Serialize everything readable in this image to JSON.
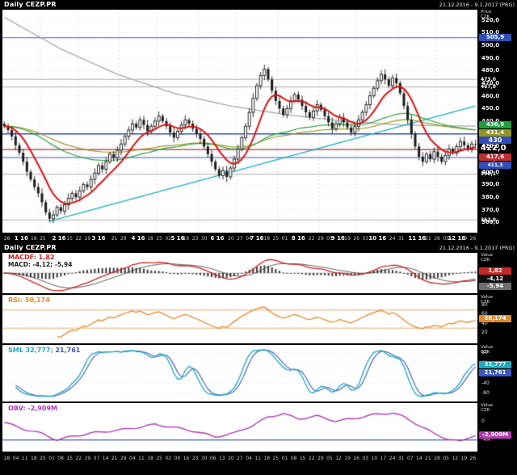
{
  "window": {
    "title": "Daily CEZP.PR",
    "range": "21.12.2016 - 9.1.2017 (PRG)",
    "axis_unit_price": "Price",
    "axis_unit_value": "Value",
    "currency": "CZK"
  },
  "main_chart": {
    "axis_ticks": [
      {
        "t": "520,0",
        "v": 520
      },
      {
        "t": "510,0",
        "v": 510
      },
      {
        "t": "500,0",
        "v": 500
      },
      {
        "t": "490,0",
        "v": 490
      },
      {
        "t": "480,0",
        "v": 480
      },
      {
        "t": "470,0",
        "v": 470
      },
      {
        "t": "460,0",
        "v": 460
      },
      {
        "t": "450,0",
        "v": 450
      },
      {
        "t": "440,0",
        "v": 440
      },
      {
        "t": "430,0",
        "v": 430
      },
      {
        "t": "420,0",
        "v": 420
      },
      {
        "t": "410,0",
        "v": 410
      },
      {
        "t": "400,0",
        "v": 400
      },
      {
        "t": "390,0",
        "v": 390
      },
      {
        "t": "380,0",
        "v": 380
      },
      {
        "t": "370,0",
        "v": 370
      },
      {
        "t": "360,0",
        "v": 360
      }
    ],
    "badges": [
      {
        "t": "505,9",
        "v": 505.9,
        "bg": "#2e4db7",
        "fs": 7
      },
      {
        "t": "473,0",
        "v": 473,
        "bg": "",
        "fs": 6
      },
      {
        "t": "467,0",
        "v": 467,
        "bg": "",
        "fs": 6
      },
      {
        "t": "436,9",
        "v": 436.9,
        "bg": "#1f9e3e",
        "fs": 7
      },
      {
        "t": "431,4",
        "v": 431.4,
        "bg": "#93931f",
        "fs": 7
      },
      {
        "t": "430",
        "v": 430,
        "bg": "#2e4db7",
        "fs": 8
      },
      {
        "t": "422,0",
        "v": 422,
        "bg": "",
        "fs": 10,
        "bold": true
      },
      {
        "t": "417,6",
        "v": 417.6,
        "bg": "#c22f2f",
        "fs": 7
      },
      {
        "t": "411,3",
        "v": 411.3,
        "bg": "#2e4db7",
        "fs": 6
      },
      {
        "t": "398,1",
        "v": 398.1,
        "bg": "",
        "fs": 6
      },
      {
        "t": "362,0",
        "v": 362,
        "bg": "",
        "fs": 6
      }
    ],
    "levels": [
      {
        "v": 505.9,
        "color": "#3a57c8",
        "w": 1
      },
      {
        "v": 473,
        "color": "#9a9a9a",
        "w": 0.8
      },
      {
        "v": 467,
        "color": "#9a9a9a",
        "w": 0.8
      },
      {
        "v": 430,
        "color": "#2e4db7",
        "w": 1.4
      },
      {
        "v": 417.6,
        "color": "#b03030",
        "w": 1.4
      },
      {
        "v": 411.3,
        "color": "#3a57c8",
        "w": 1
      },
      {
        "v": 398.1,
        "color": "#9a9a9a",
        "w": 0.8
      },
      {
        "v": 362,
        "color": "#9a9a9a",
        "w": 0.8
      }
    ],
    "months": [
      {
        "t": "1 16",
        "c": 10
      },
      {
        "t": "2 16",
        "c": 10
      },
      {
        "t": "3 16",
        "c": 11
      },
      {
        "t": "4 16",
        "c": 10
      },
      {
        "t": "5 16",
        "c": 11
      },
      {
        "t": "6 16",
        "c": 10
      },
      {
        "t": "7 16",
        "c": 11
      },
      {
        "t": "8 16",
        "c": 11
      },
      {
        "t": "9 16",
        "c": 10
      },
      {
        "t": "10 16",
        "c": 11
      },
      {
        "t": "11 16",
        "c": 10
      },
      {
        "t": "12 16",
        "c": 11
      }
    ],
    "week_days": [
      "28",
      "04",
      "11",
      "18",
      "25",
      "01",
      "08",
      "15",
      "22",
      "29",
      "07",
      "14",
      "21",
      "29",
      "04",
      "11",
      "18",
      "25",
      "02",
      "09",
      "16",
      "23",
      "30",
      "06",
      "13",
      "20",
      "27",
      "04",
      "11",
      "18",
      "25",
      "01",
      "08",
      "15",
      "22",
      "29",
      "05",
      "12",
      "19",
      "26",
      "03",
      "10",
      "17",
      "24",
      "31",
      "07",
      "14",
      "21",
      "28",
      "05",
      "12",
      "19",
      "26"
    ]
  },
  "panels": {
    "macd": {
      "label1": "MACDF: 1,82",
      "label2": "MACD: -4,12; -5,94",
      "badges": [
        {
          "t": "1,82",
          "v": 1.82,
          "bg": "#c62828"
        },
        {
          "t": "-4,12",
          "v": -4.12,
          "bg": "#101010"
        },
        {
          "t": "-5,94",
          "v": -5.94,
          "bg": "#6e6e6e"
        }
      ]
    },
    "rsi": {
      "label": "RSI: 50,174",
      "ticks": [
        {
          "t": "80",
          "v": 80
        },
        {
          "t": "60",
          "v": 60
        },
        {
          "t": "40",
          "v": 40
        },
        {
          "t": "20",
          "v": 20
        }
      ],
      "badge": {
        "t": "50,174",
        "v": 50.174,
        "bg": "#e08a2e"
      },
      "ref_lines": [
        70,
        30
      ]
    },
    "sml": {
      "label_a": "SML 32,777;",
      "label_b": " 21,761",
      "ticks": [
        {
          "t": "80",
          "v": 80
        },
        {
          "t": "40",
          "v": 40
        },
        {
          "t": "0",
          "v": 0
        },
        {
          "t": "-40",
          "v": -40
        },
        {
          "t": "-80",
          "v": -80
        }
      ],
      "badges": [
        {
          "t": "32,777",
          "v": 32.777,
          "bg": "#17a9c0"
        },
        {
          "t": "21,761",
          "v": 21.761,
          "bg": "#3a57c8"
        }
      ]
    },
    "obv": {
      "label": "OBV: -2,909M",
      "ticks": [
        {
          "t": "0",
          "v": 0
        },
        {
          "t": "-4M",
          "v": -4
        }
      ],
      "badge": {
        "t": "-2,909M",
        "v": -2.909,
        "bg": "#b13ab1"
      },
      "level": {
        "v": -4,
        "color": "#3a57c8"
      }
    }
  },
  "chart_data": {
    "type": "candlestick",
    "symbol": "CEZP.PR",
    "interval": "Daily",
    "title": "Daily CEZP.PR",
    "price_axis_range": [
      352,
      528
    ],
    "open_first": 438,
    "closes": [
      436,
      433,
      428,
      421,
      415,
      408,
      400,
      394,
      388,
      383,
      376,
      368,
      363,
      366,
      372,
      369,
      374,
      379,
      383,
      380,
      385,
      390,
      388,
      394,
      399,
      405,
      402,
      408,
      414,
      411,
      417,
      422,
      428,
      433,
      438,
      435,
      441,
      437,
      432,
      436,
      440,
      444,
      440,
      436,
      431,
      427,
      432,
      437,
      441,
      438,
      434,
      430,
      426,
      420,
      414,
      408,
      402,
      397,
      401,
      396,
      403,
      410,
      418,
      427,
      436,
      447,
      458,
      468,
      476,
      481,
      473,
      464,
      456,
      450,
      445,
      450,
      456,
      461,
      457,
      452,
      447,
      443,
      448,
      453,
      449,
      444,
      439,
      434,
      438,
      443,
      439,
      435,
      431,
      436,
      441,
      447,
      453,
      460,
      466,
      472,
      477,
      473,
      468,
      474,
      470,
      462,
      452,
      441,
      430,
      420,
      412,
      408,
      414,
      410,
      416,
      412,
      408,
      413,
      418,
      415,
      420,
      424,
      421,
      418,
      422,
      422
    ],
    "overlays": {
      "gray_ma_points": [
        [
          0,
          522
        ],
        [
          15,
          497
        ],
        [
          30,
          477
        ],
        [
          45,
          462
        ],
        [
          60,
          452
        ],
        [
          75,
          445
        ],
        [
          90,
          440
        ],
        [
          105,
          437
        ],
        [
          125,
          436
        ]
      ],
      "trendline_points": [
        [
          12,
          361
        ],
        [
          125,
          452
        ]
      ],
      "green_ma_span": 60,
      "olive_ma_span": 90,
      "red_ma_span": 5
    },
    "indicators": {
      "macd": {
        "fast": 12,
        "slow": 26,
        "signal": 9,
        "last_fast": 1.82,
        "last_macd": -4.12,
        "last_signal": -5.94
      },
      "rsi": {
        "period": 14,
        "last": 50.174,
        "ref": [
          70,
          30
        ]
      },
      "sml": {
        "k": 14,
        "smooth": 3,
        "last1": 32.777,
        "last2": 21.761,
        "range": [
          -100,
          100
        ]
      },
      "obv": {
        "last_label": "-2,909M",
        "unit": "M",
        "points": [
          [
            0,
            -0.2
          ],
          [
            6,
            -1.8
          ],
          [
            10,
            -2.6
          ],
          [
            14,
            -4.0
          ],
          [
            18,
            -3.2
          ],
          [
            24,
            -2.4
          ],
          [
            30,
            -1.9
          ],
          [
            36,
            -1.2
          ],
          [
            40,
            -0.6
          ],
          [
            46,
            -1.4
          ],
          [
            51,
            -2.2
          ],
          [
            56,
            -3.3
          ],
          [
            61,
            -2.5
          ],
          [
            66,
            -0.8
          ],
          [
            70,
            1.0
          ],
          [
            74,
            1.7
          ],
          [
            78,
            0.6
          ],
          [
            83,
            1.2
          ],
          [
            88,
            0.1
          ],
          [
            93,
            0.7
          ],
          [
            98,
            1.5
          ],
          [
            103,
            1.9
          ],
          [
            106,
            1.0
          ],
          [
            110,
            -0.8
          ],
          [
            114,
            -2.6
          ],
          [
            118,
            -3.9
          ],
          [
            121,
            -4.3
          ],
          [
            123,
            -3.5
          ],
          [
            125,
            -2.909
          ]
        ]
      }
    },
    "colors": {
      "candle": "#1a1a1a",
      "red_ma": "#e01010",
      "green_ma": "#27a23c",
      "olive_ma": "#9a9a1e",
      "gray_ma": "#a8a8a8",
      "trendline": "#17b0c4",
      "macd_line": "#cc2222",
      "macd_signal": "#333333",
      "macd_hist": "#3a3a3a",
      "rsi": "#e8872a",
      "rsi_ref": "#e6a35a",
      "sml1": "#17a9c0",
      "sml2": "#3a57c8",
      "obv": "#b13ab1",
      "obv_level": "#3a57c8",
      "grid": "#e6e6e6",
      "month_grid": "#cfcfcf"
    }
  }
}
